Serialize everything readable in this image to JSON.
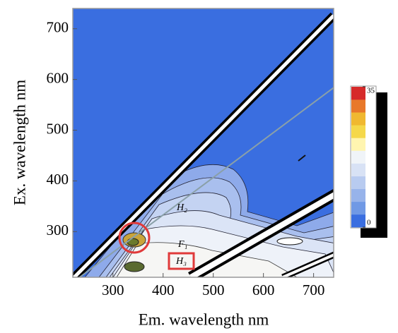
{
  "chart_data": {
    "type": "contour",
    "xlabel": "Em. wavelength nm",
    "ylabel": "Ex. wavelength nm",
    "xlim": [
      220,
      740
    ],
    "ylim": [
      210,
      740
    ],
    "xticks": [
      300,
      400,
      500,
      600,
      700
    ],
    "yticks": [
      300,
      400,
      500,
      600,
      700
    ],
    "colorbar": {
      "clim": [
        0,
        35
      ],
      "ticks": [
        0,
        35
      ],
      "colors": [
        "#3a6ee0",
        "#7099e5",
        "#97b3ea",
        "#b8cbf0",
        "#d8e2f5",
        "#f0f4f8",
        "#fff5b0",
        "#f5d84a",
        "#f0b830",
        "#e8782a",
        "#d62a2a"
      ]
    },
    "background": "#3a6ee0",
    "annotations": [
      "H₂",
      "F₁",
      "H₃"
    ]
  }
}
